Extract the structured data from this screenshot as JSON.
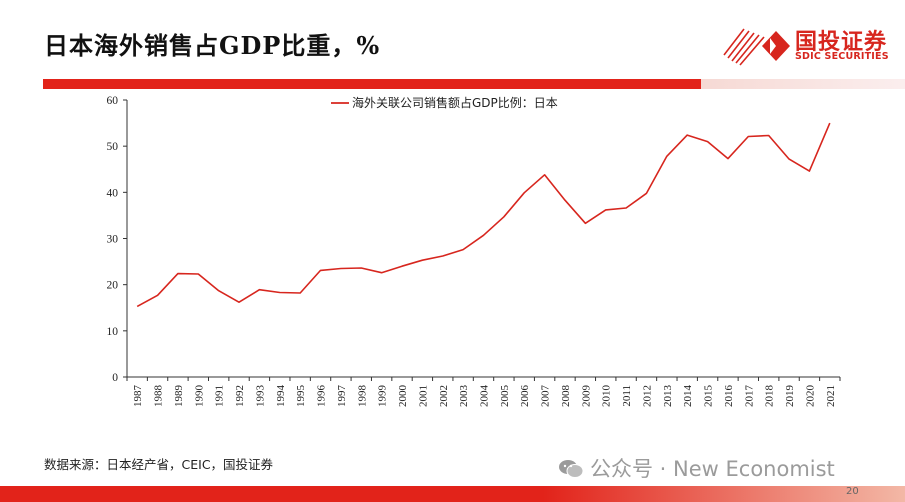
{
  "header": {
    "title": "日本海外销售占GDP比重，%",
    "logo_text": "国投证券",
    "logo_sub": "SDIC SECURITIES",
    "accent": "#e2231a"
  },
  "chart_data": {
    "type": "line",
    "title": "",
    "xlabel": "",
    "ylabel": "",
    "ylim": [
      0,
      60
    ],
    "yticks": [
      0,
      10,
      20,
      30,
      40,
      50,
      60
    ],
    "legend_position": "top-center",
    "grid": false,
    "x": [
      "1987",
      "1988",
      "1989",
      "1990",
      "1991",
      "1992",
      "1993",
      "1994",
      "1995",
      "1996",
      "1997",
      "1998",
      "1999",
      "2000",
      "2001",
      "2002",
      "2003",
      "2004",
      "2005",
      "2006",
      "2007",
      "2008",
      "2009",
      "2010",
      "2011",
      "2012",
      "2013",
      "2014",
      "2015",
      "2016",
      "2017",
      "2018",
      "2019",
      "2020",
      "2021"
    ],
    "series": [
      {
        "name": "海外关联公司销售额占GDP比例：日本",
        "color": "#d7261e",
        "values": [
          15.3,
          17.7,
          22.4,
          22.3,
          18.7,
          16.2,
          18.9,
          18.3,
          18.2,
          23.1,
          23.5,
          23.6,
          22.6,
          24.0,
          25.3,
          26.2,
          27.6,
          30.7,
          34.7,
          39.9,
          43.8,
          38.3,
          33.3,
          36.2,
          36.6,
          39.8,
          47.8,
          52.4,
          51.0,
          47.3,
          52.1,
          52.3,
          47.2,
          44.6,
          55.0
        ]
      }
    ]
  },
  "footer": {
    "source": "数据来源：日本经产省，CEIC，国投证券",
    "watermark": "公众号 · New Economist",
    "page_number": "20"
  }
}
